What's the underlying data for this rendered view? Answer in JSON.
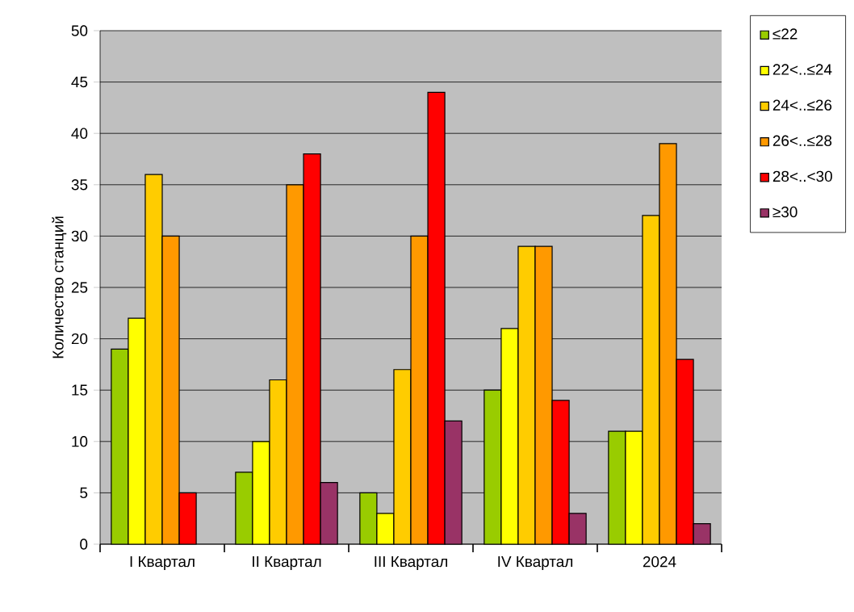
{
  "chart_data": {
    "type": "bar",
    "ylabel": "Количество  станций",
    "categories": [
      "I Квартал",
      "II Квартал",
      "III  Квартал",
      "IV Квартал",
      "2024"
    ],
    "series": [
      {
        "name": "≤22",
        "color": "#99cc00",
        "values": [
          19,
          7,
          5,
          15,
          11
        ]
      },
      {
        "name": "22<..≤24",
        "color": "#ffff00",
        "values": [
          22,
          10,
          3,
          21,
          11
        ]
      },
      {
        "name": "24<..≤26",
        "color": "#ffcc00",
        "values": [
          36,
          16,
          17,
          29,
          32
        ]
      },
      {
        "name": "26<..≤28",
        "color": "#ff9900",
        "values": [
          30,
          35,
          30,
          29,
          39
        ]
      },
      {
        "name": "28<..<30",
        "color": "#ff0000",
        "values": [
          5,
          38,
          44,
          14,
          18
        ]
      },
      {
        "name": "≥30",
        "color": "#993366",
        "values": [
          null,
          6,
          12,
          3,
          2
        ]
      }
    ],
    "ylim": [
      0,
      50
    ],
    "yticks": [
      0,
      5,
      10,
      15,
      20,
      25,
      30,
      35,
      40,
      45,
      50
    ],
    "grid": "y",
    "legend": "top right"
  }
}
